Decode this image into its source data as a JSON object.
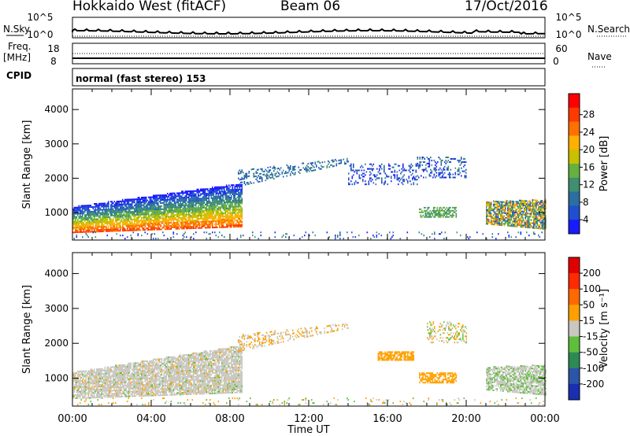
{
  "header": {
    "station": "Hokkaido West (fitACF)",
    "beam": "Beam 06",
    "date": "17/Oct/2016"
  },
  "top_panels": {
    "nsky_label": "N.Sky",
    "nsky_ticks": [
      "10^5",
      "10^0"
    ],
    "nsearch_label": "N.Search",
    "nsearch_ticks": [
      "10^5",
      "10^0"
    ],
    "freq_label": "Freq.",
    "freq_unit": "[MHz]",
    "freq_ticks": [
      "18",
      "8"
    ],
    "nave_label": "Nave",
    "nave_ticks": [
      "60",
      "0"
    ],
    "cpid_label": "CPID",
    "cpid_text": "normal (fast stereo) 153"
  },
  "chart_data": [
    {
      "type": "heatmap",
      "name": "power",
      "x_ticks": [
        "00:00",
        "04:00",
        "08:00",
        "12:00",
        "16:00",
        "20:00",
        "00:00"
      ],
      "xlim_hours": [
        0,
        24
      ],
      "ylabel": "Slant Range [km]",
      "y_ticks": [
        1000,
        2000,
        3000,
        4000
      ],
      "ylim": [
        200,
        4600
      ],
      "colorbar": {
        "label": "Power [dB]",
        "ticks": [
          "4",
          "8",
          "12",
          "16",
          "20",
          "24",
          "28"
        ],
        "colors": [
          "#1a1aff",
          "#1f4fd0",
          "#2a6fa0",
          "#3f8f70",
          "#66b040",
          "#c8c000",
          "#ffb000",
          "#ff7000",
          "#ff3a00",
          "#ff0000"
        ]
      }
    },
    {
      "type": "heatmap",
      "name": "velocity",
      "x_ticks": [
        "00:00",
        "04:00",
        "08:00",
        "12:00",
        "16:00",
        "20:00",
        "00:00"
      ],
      "xlim_hours": [
        0,
        24
      ],
      "xlabel": "Time UT",
      "ylabel": "Slant Range [km]",
      "y_ticks": [
        1000,
        2000,
        3000,
        4000
      ],
      "ylim": [
        200,
        4600
      ],
      "colorbar": {
        "label": "Velocity [m s⁻¹]",
        "ticks": [
          "200",
          "100",
          "50",
          "15",
          "-15",
          "-50",
          "-100",
          "-200"
        ],
        "colors": [
          "#1a2fb0",
          "#2a55a8",
          "#2c8a55",
          "#5fbe3c",
          "#c8c8c0",
          "#ffa000",
          "#ff6a00",
          "#ff2a00",
          "#e00000"
        ]
      }
    }
  ]
}
